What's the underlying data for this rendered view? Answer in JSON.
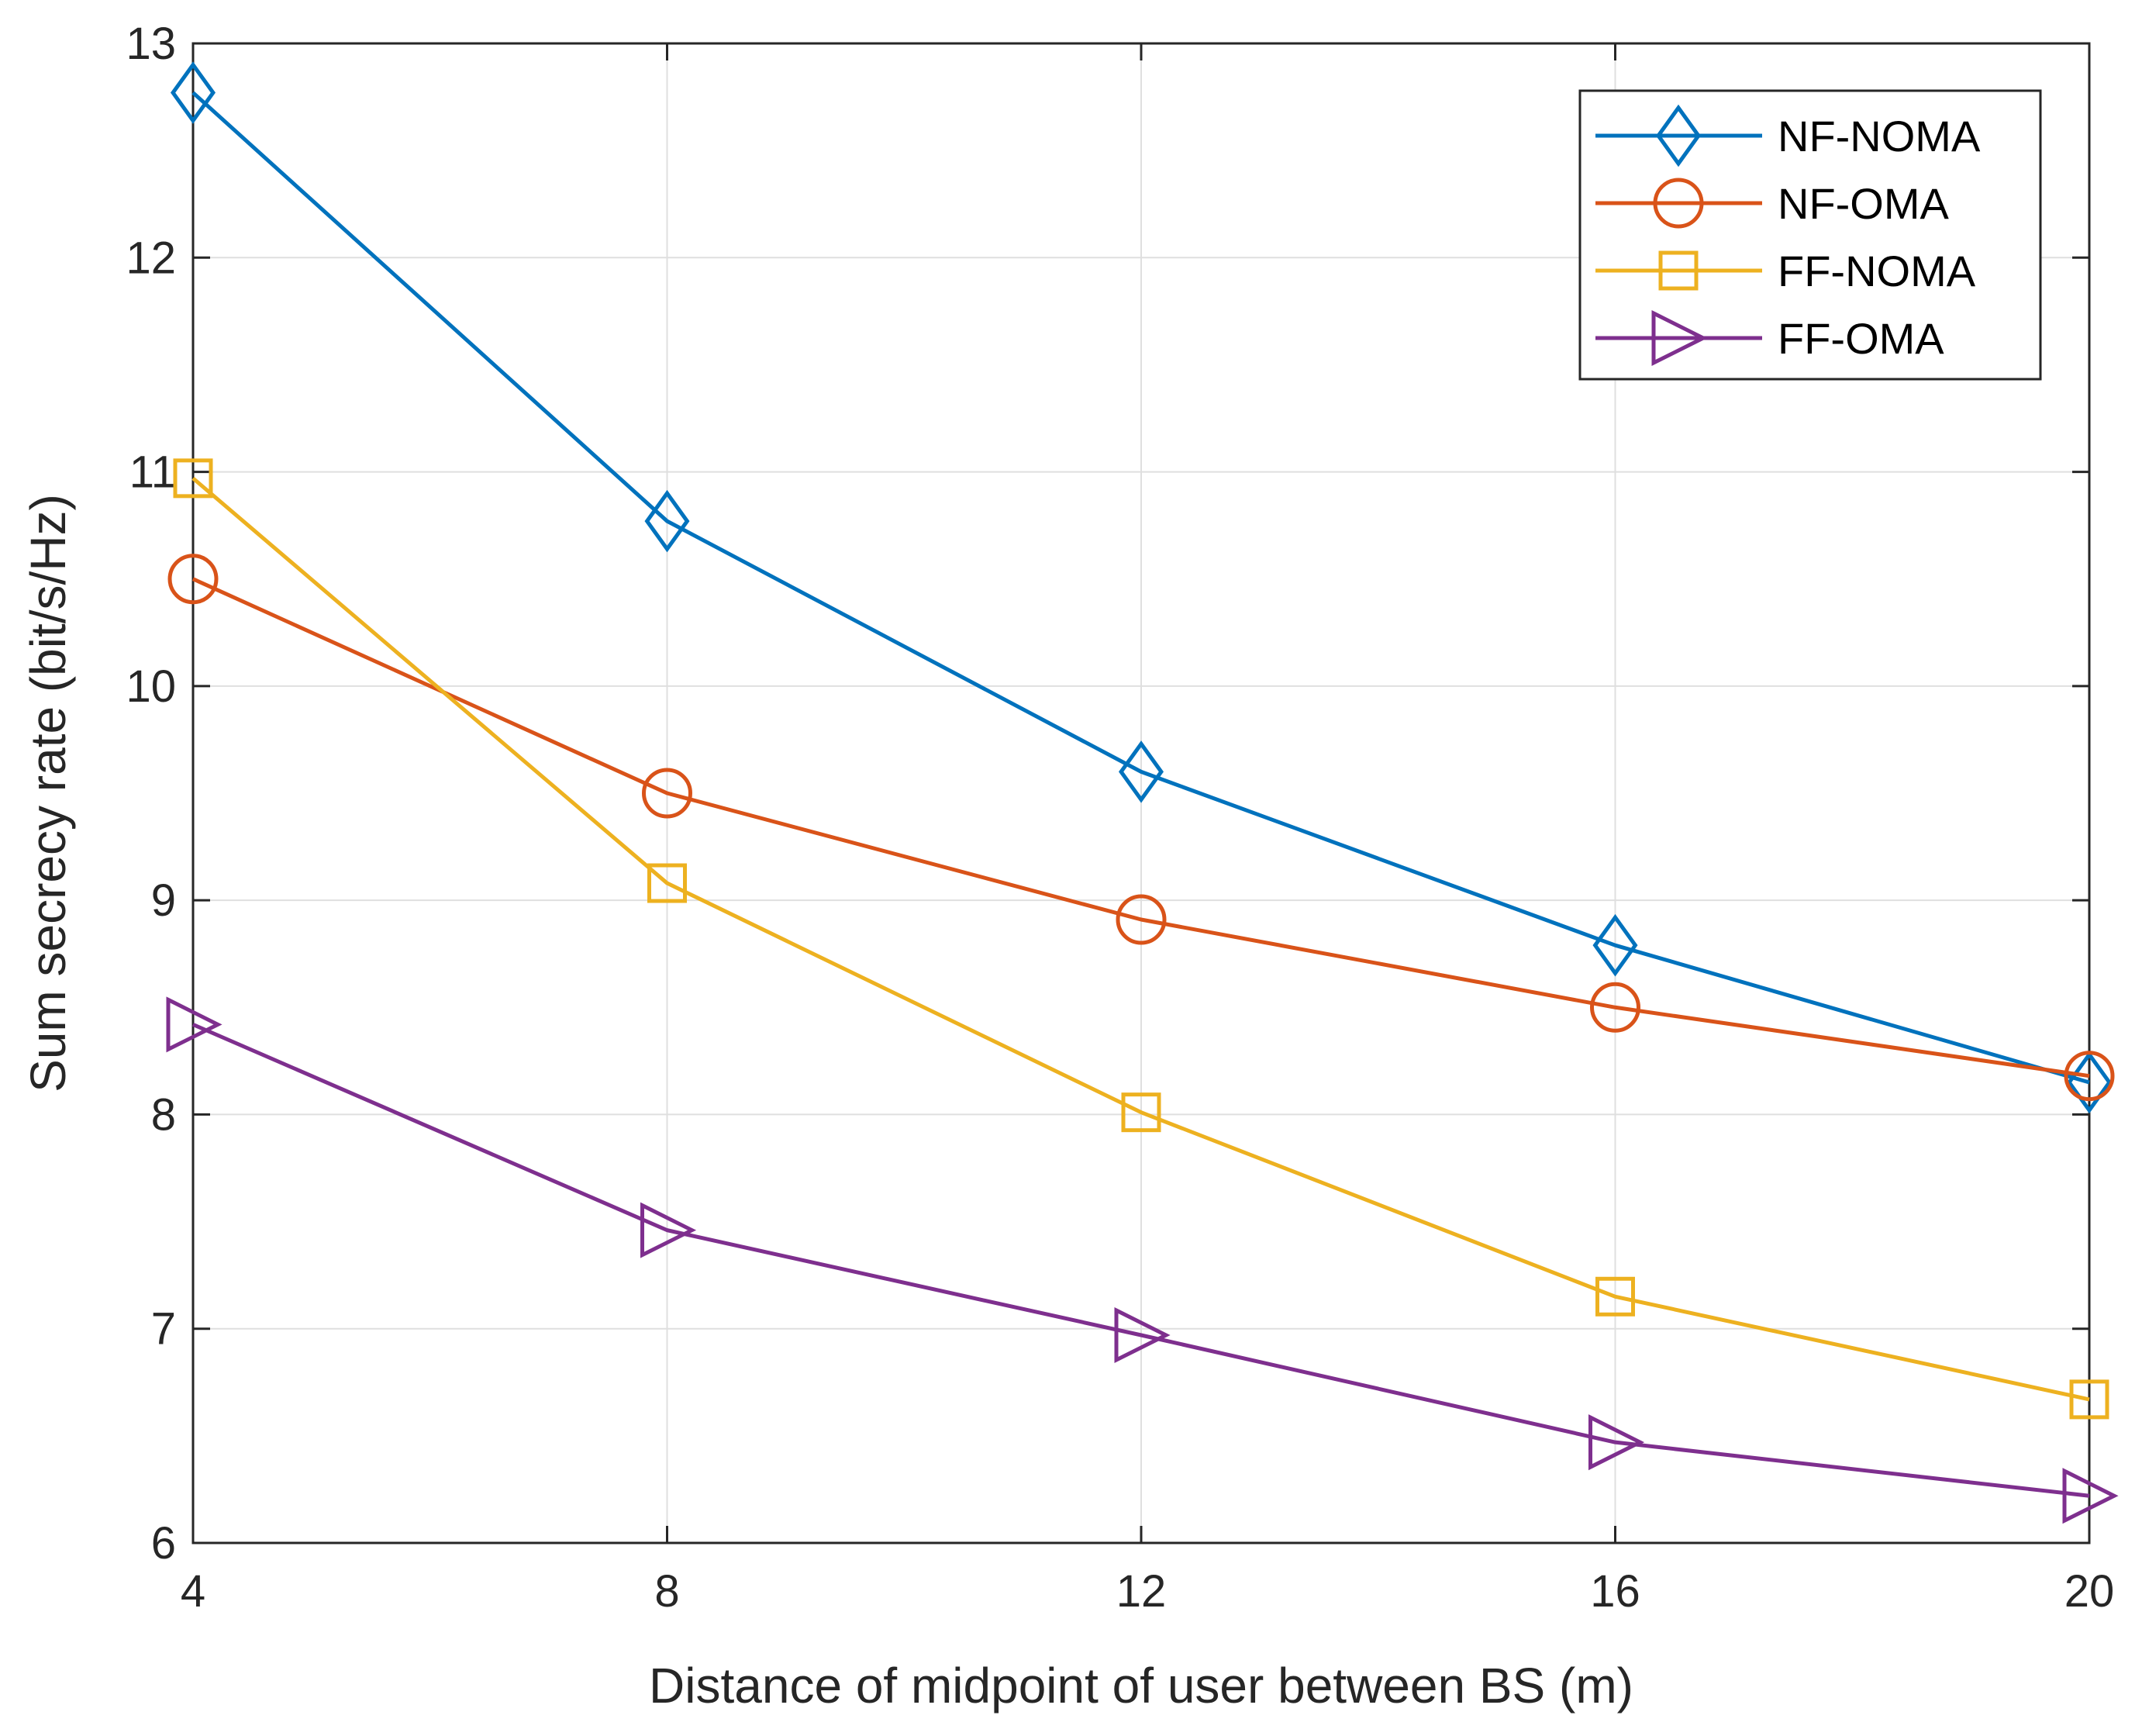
{
  "chart_data": {
    "type": "line",
    "xlabel": "Distance of midpoint of user between BS (m)",
    "ylabel": "Sum secrecy rate (bit/s/Hz)",
    "x": [
      4,
      8,
      12,
      16,
      20
    ],
    "xlim": [
      4,
      20
    ],
    "ylim": [
      6,
      13
    ],
    "xticks": [
      "4",
      "8",
      "12",
      "16",
      "20"
    ],
    "yticks": [
      "6",
      "7",
      "8",
      "9",
      "10",
      "11",
      "12",
      "13"
    ],
    "grid": true,
    "legend_position": "top-right",
    "series": [
      {
        "name": "NF-NOMA",
        "color": "#0072BD",
        "marker": "diamond",
        "values": [
          12.77,
          10.77,
          9.6,
          8.79,
          8.15
        ]
      },
      {
        "name": "NF-OMA",
        "color": "#D95319",
        "marker": "circle",
        "values": [
          10.5,
          9.5,
          8.91,
          8.5,
          8.18
        ]
      },
      {
        "name": "FF-NOMA",
        "color": "#EDB120",
        "marker": "square",
        "values": [
          10.97,
          9.08,
          8.01,
          7.15,
          6.67
        ]
      },
      {
        "name": "FF-OMA",
        "color": "#7E2F8E",
        "marker": "triangle-right",
        "values": [
          8.42,
          7.46,
          6.97,
          6.47,
          6.22
        ]
      }
    ]
  }
}
